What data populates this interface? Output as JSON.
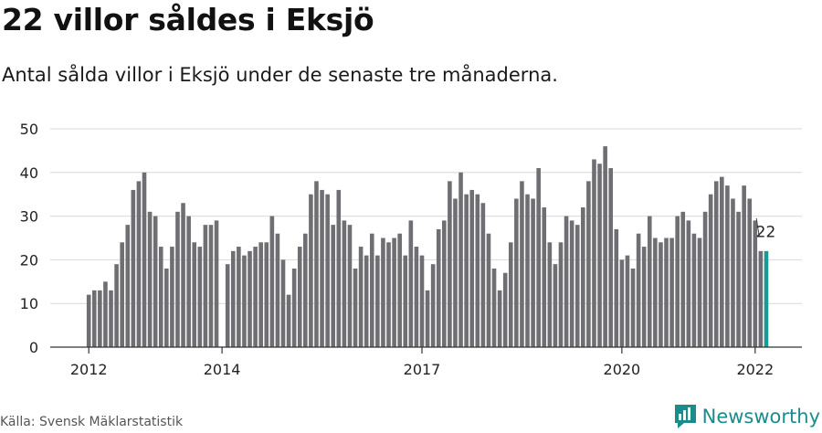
{
  "title": "22 villor såldes i Eksjö",
  "subtitle": "Antal sålda villor i Eksjö under de senaste tre månaderna.",
  "source": "Källa: Svensk Mäklarstatistik",
  "brand": "Newsworthy",
  "colors": {
    "bar": "#6f6e73",
    "highlight": "#1a9a96",
    "grid": "#d8d8d8",
    "brand": "#1b8c8c"
  },
  "chart_data": {
    "type": "bar",
    "title": "22 villor såldes i Eksjö",
    "xlabel": "",
    "ylabel": "",
    "ylim": [
      0,
      50
    ],
    "yticks": [
      0,
      10,
      20,
      30,
      40,
      50
    ],
    "xticks": [
      {
        "label": "2012",
        "index": 0
      },
      {
        "label": "2014",
        "index": 24
      },
      {
        "label": "2017",
        "index": 60
      },
      {
        "label": "2020",
        "index": 96
      },
      {
        "label": "2022",
        "index": 120
      }
    ],
    "annotation": "22",
    "values": [
      12,
      13,
      13,
      15,
      13,
      19,
      24,
      28,
      36,
      38,
      40,
      31,
      30,
      23,
      18,
      23,
      31,
      33,
      30,
      24,
      23,
      28,
      28,
      29,
      0,
      19,
      22,
      23,
      21,
      22,
      23,
      24,
      24,
      30,
      26,
      20,
      12,
      18,
      23,
      26,
      35,
      38,
      36,
      35,
      28,
      36,
      29,
      28,
      18,
      23,
      21,
      26,
      21,
      25,
      24,
      25,
      26,
      21,
      29,
      23,
      21,
      13,
      19,
      27,
      29,
      38,
      34,
      40,
      35,
      36,
      35,
      33,
      26,
      18,
      13,
      17,
      24,
      34,
      38,
      35,
      34,
      41,
      32,
      24,
      19,
      24,
      30,
      29,
      28,
      32,
      38,
      43,
      42,
      46,
      41,
      27,
      20,
      21,
      18,
      26,
      23,
      30,
      25,
      24,
      25,
      25,
      30,
      31,
      29,
      26,
      25,
      31,
      35,
      38,
      39,
      37,
      34,
      31,
      37,
      34,
      29,
      22,
      22
    ],
    "highlight_index": 122
  }
}
